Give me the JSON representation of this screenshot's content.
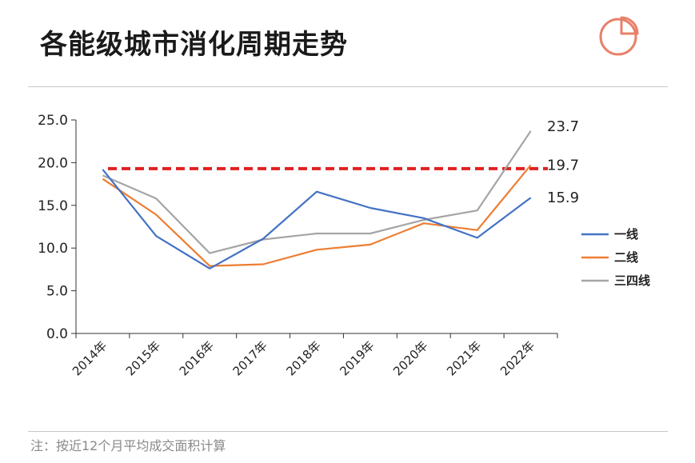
{
  "title": "各能级城市消化周期走势",
  "footnote": "注：按近12个月平均成交面积计算",
  "logo_icon": "pie-chart-icon",
  "colors": {
    "series_1": "#4472c4",
    "series_2": "#ed7d31",
    "series_3": "#a5a5a5",
    "reference": "#e02020",
    "logo": "#e8806a"
  },
  "chart_data": {
    "type": "line",
    "title": "",
    "xlabel": "",
    "ylabel": "",
    "ylim": [
      0,
      25
    ],
    "yticks": [
      "0.0",
      "5.0",
      "10.0",
      "15.0",
      "20.0",
      "25.0"
    ],
    "categories": [
      "2014年",
      "2015年",
      "2016年",
      "2017年",
      "2018年",
      "2019年",
      "2020年",
      "2021年",
      "2022年"
    ],
    "series": [
      {
        "name": "一线",
        "values": [
          19.2,
          11.4,
          7.6,
          11.1,
          16.6,
          14.7,
          13.5,
          11.2,
          15.9
        ],
        "end_label": "15.9"
      },
      {
        "name": "二线",
        "values": [
          18.1,
          13.9,
          7.9,
          8.1,
          9.8,
          10.4,
          12.9,
          12.1,
          19.7
        ],
        "end_label": "19.7"
      },
      {
        "name": "三四线",
        "values": [
          18.5,
          15.8,
          9.4,
          11.0,
          11.7,
          11.7,
          13.3,
          14.4,
          23.7
        ],
        "end_label": "23.7"
      }
    ],
    "reference_line": {
      "value": 19.3,
      "style": "dashed"
    },
    "legend_position": "right"
  }
}
